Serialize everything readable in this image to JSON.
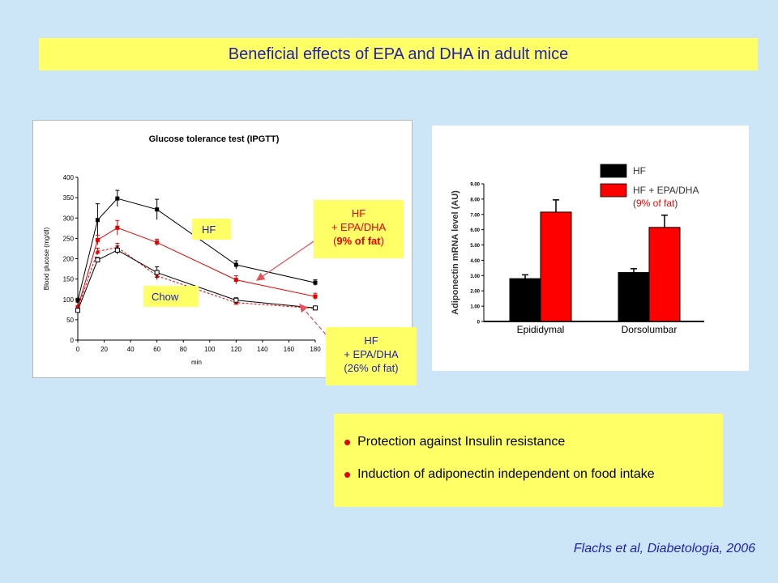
{
  "slide_title": "Beneficial effects of  EPA and DHA in adult mice",
  "gtt": {
    "callouts": {
      "hf": "HF",
      "chow": "Chow",
      "hf9_line1": "HF",
      "hf9_line2": "+ EPA/DHA",
      "hf9_line3_open": "(",
      "hf9_line3_bold": "9% of fat",
      "hf9_line3_close": ")",
      "hf26_line1": "HF",
      "hf26_line2": "+ EPA/DHA",
      "hf26_line3": "(26% of fat)"
    }
  },
  "bullets": [
    "Protection against Insulin resistance",
    " Induction of adiponectin independent on food intake"
  ],
  "citation": "Flachs et al, Diabetologia, 2006",
  "colors": {
    "accent": "#1f1fb4",
    "highlight": "#ffff66",
    "red": "#e60000",
    "background": "#cce6f8"
  },
  "chart_data": [
    {
      "type": "line",
      "title": "Glucose tolerance test (IPGTT)",
      "xlabel": "min",
      "ylabel": "Blood glucose (mg/dl)",
      "xlim": [
        0,
        180
      ],
      "ylim": [
        0,
        400
      ],
      "xticks": [
        0,
        20,
        40,
        60,
        80,
        100,
        120,
        140,
        160,
        180
      ],
      "yticks": [
        0,
        50,
        100,
        150,
        200,
        250,
        300,
        350,
        400
      ],
      "grid": false,
      "series": [
        {
          "name": "HF",
          "color": "#000000",
          "marker": "filled-square",
          "dashed": false,
          "x": [
            0,
            15,
            30,
            60,
            120,
            180
          ],
          "y": [
            97,
            295,
            348,
            321,
            185,
            141
          ],
          "err": [
            6,
            40,
            20,
            25,
            10,
            7
          ]
        },
        {
          "name": "HF + EPA/DHA (9% of fat)",
          "color": "#e60000",
          "marker": "filled-square",
          "dashed": false,
          "x": [
            0,
            15,
            30,
            60,
            120,
            180
          ],
          "y": [
            80,
            246,
            276,
            240,
            148,
            107
          ],
          "err": [
            5,
            12,
            18,
            8,
            10,
            8
          ]
        },
        {
          "name": "HF + EPA/DHA (26% of fat)",
          "color": "#e60000",
          "marker": "filled-triangle",
          "dashed": true,
          "x": [
            0,
            15,
            30,
            60,
            120,
            180
          ],
          "y": [
            78,
            218,
            228,
            158,
            92,
            78
          ],
          "err": [
            4,
            8,
            10,
            10,
            5,
            4
          ]
        },
        {
          "name": "Chow",
          "color": "#000000",
          "marker": "open-square",
          "dashed": false,
          "x": [
            0,
            15,
            30,
            60,
            120,
            180
          ],
          "y": [
            73,
            197,
            221,
            166,
            98,
            79
          ],
          "err": [
            4,
            6,
            10,
            14,
            6,
            4
          ]
        }
      ]
    },
    {
      "type": "bar",
      "ylabel": "Adiponectin mRNA level (AU)",
      "ylim": [
        0,
        9
      ],
      "yticks": [
        "0",
        "1.00",
        "2.00",
        "3.00",
        "4.00",
        "5.00",
        "6.00",
        "7.00",
        "8.00",
        "9.00"
      ],
      "categories": [
        "Epididymal",
        "Dorsolumbar"
      ],
      "series": [
        {
          "name": "HF",
          "color": "#000000",
          "values": [
            2.8,
            3.2
          ],
          "err": [
            0.25,
            0.25
          ]
        },
        {
          "name": "HF + EPA/DHA",
          "name_sub": "9% of fat",
          "color": "#ff0000",
          "values": [
            7.15,
            6.15
          ],
          "err": [
            0.8,
            0.8
          ]
        }
      ],
      "legend_position": "top-right"
    }
  ]
}
